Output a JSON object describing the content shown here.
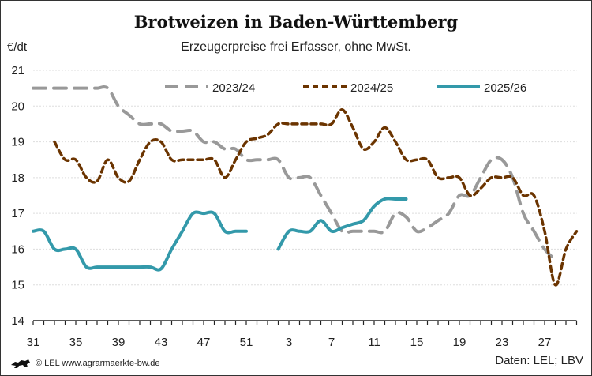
{
  "chart_data": {
    "type": "line",
    "title": "Brotweizen in Baden-Württemberg",
    "subtitle": "Erzeugerpreise frei Erfasser, ohne MwSt.",
    "ylabel": "€/dt",
    "ylim": [
      14,
      21
    ],
    "yticks": [
      14,
      15,
      16,
      17,
      18,
      19,
      20,
      21
    ],
    "x": [
      31,
      32,
      33,
      34,
      35,
      36,
      37,
      38,
      39,
      40,
      41,
      42,
      43,
      44,
      45,
      46,
      47,
      48,
      49,
      50,
      51,
      52,
      1,
      2,
      3,
      4,
      5,
      6,
      7,
      8,
      9,
      10,
      11,
      12,
      13,
      14,
      15,
      16,
      17,
      18,
      19,
      20,
      21,
      22,
      23,
      24,
      25,
      26,
      27,
      28,
      29,
      30
    ],
    "xtick_labels": [
      "31",
      "35",
      "39",
      "43",
      "47",
      "51",
      "3",
      "7",
      "11",
      "15",
      "19",
      "23",
      "27"
    ],
    "grid": "horizontal",
    "legend": "top",
    "series": [
      {
        "name": "2023/24",
        "color": "#999999",
        "style": "dashed",
        "values": [
          20.5,
          20.5,
          20.5,
          20.5,
          20.5,
          20.5,
          20.5,
          20.5,
          20.0,
          19.75,
          19.5,
          19.5,
          19.5,
          19.3,
          19.3,
          19.3,
          19.0,
          19.0,
          18.8,
          18.8,
          18.5,
          18.5,
          18.5,
          18.5,
          18.0,
          18.0,
          18.0,
          17.5,
          17.0,
          16.5,
          16.5,
          16.5,
          16.5,
          16.5,
          17.0,
          16.9,
          16.5,
          16.6,
          16.8,
          17.0,
          17.5,
          17.5,
          18.0,
          18.5,
          18.5,
          18.0,
          17.0,
          16.5,
          16.0,
          15.7,
          null,
          null
        ]
      },
      {
        "name": "2024/25",
        "color": "#6b3400",
        "style": "dotted",
        "values": [
          null,
          null,
          19.0,
          18.5,
          18.5,
          18.0,
          17.9,
          18.5,
          18.0,
          17.9,
          18.5,
          19.0,
          19.0,
          18.5,
          18.5,
          18.5,
          18.5,
          18.5,
          18.0,
          18.5,
          19.0,
          19.1,
          19.2,
          19.5,
          19.5,
          19.5,
          19.5,
          19.5,
          19.5,
          19.9,
          19.4,
          18.8,
          19.0,
          19.4,
          19.0,
          18.5,
          18.5,
          18.5,
          18.0,
          18.0,
          18.0,
          17.5,
          17.7,
          18.0,
          18.0,
          18.0,
          17.5,
          17.5,
          16.5,
          15.0,
          16.0,
          16.5
        ]
      },
      {
        "name": "2025/26",
        "color": "#3399aa",
        "style": "solid",
        "values": [
          16.5,
          16.5,
          16.0,
          16.0,
          16.0,
          15.5,
          15.5,
          15.5,
          15.5,
          15.5,
          15.5,
          15.5,
          15.45,
          16.0,
          16.5,
          17.0,
          17.0,
          17.0,
          16.5,
          16.5,
          16.5,
          null,
          null,
          16.0,
          16.5,
          16.5,
          16.5,
          16.8,
          16.5,
          16.6,
          16.7,
          16.8,
          17.2,
          17.4,
          17.4,
          17.4,
          null,
          null,
          null,
          null,
          null,
          null,
          null,
          null,
          null,
          null,
          null,
          null,
          null,
          null,
          null,
          null
        ]
      }
    ]
  },
  "footer": {
    "copyright": "© LEL www.agrarmaerkte-bw.de",
    "source": "Daten: LEL; LBV"
  }
}
